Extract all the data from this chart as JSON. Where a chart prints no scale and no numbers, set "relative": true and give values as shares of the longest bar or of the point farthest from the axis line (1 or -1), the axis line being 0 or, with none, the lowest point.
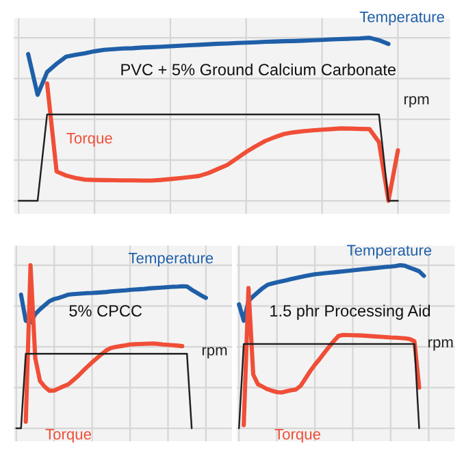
{
  "chart_data": [
    {
      "type": "line",
      "title": "PVC + 5% Ground Calcium Carbonate",
      "relative": true,
      "grid": true,
      "tick_labels": false,
      "categories": [
        null,
        null,
        null,
        null,
        null,
        null,
        null,
        null,
        null,
        null,
        null,
        null,
        null,
        null,
        null,
        null,
        null,
        null,
        null,
        null,
        null,
        null,
        null,
        null,
        null,
        null,
        null,
        null,
        null,
        null,
        null,
        null,
        null,
        null,
        null,
        null,
        null,
        null,
        null,
        null,
        null
      ],
      "series": [
        {
          "name": "Temperature",
          "color": "#1f5fa8",
          "values": [
            null,
            0.9,
            0.65,
            0.79,
            0.84,
            0.884,
            0.895,
            0.905,
            0.917,
            0.926,
            0.93,
            0.934,
            0.936,
            0.94,
            0.942,
            0.945,
            0.948,
            0.951,
            0.954,
            0.957,
            0.96,
            0.963,
            0.965,
            0.968,
            0.97,
            0.972,
            0.975,
            0.977,
            0.979,
            0.98,
            0.982,
            0.985,
            0.987,
            0.99,
            0.992,
            0.994,
            0.996,
            1.0,
            0.985,
            0.962,
            null
          ]
        },
        {
          "name": "Torque",
          "color": "#f04e37",
          "values": [
            null,
            null,
            null,
            0.72,
            0.18,
            0.155,
            0.14,
            0.13,
            0.128,
            0.127,
            0.126,
            0.125,
            0.125,
            0.124,
            0.124,
            0.128,
            0.133,
            0.139,
            0.145,
            0.152,
            0.17,
            0.195,
            0.22,
            0.26,
            0.3,
            0.335,
            0.367,
            0.39,
            0.41,
            0.42,
            0.427,
            0.432,
            0.436,
            0.44,
            0.444,
            0.443,
            0.441,
            0.44,
            0.36,
            0.0,
            0.31
          ]
        },
        {
          "name": "rpm",
          "color": "#222222",
          "values": [
            0,
            0,
            0,
            0.53,
            0.53,
            0.53,
            0.53,
            0.53,
            0.53,
            0.53,
            0.53,
            0.53,
            0.53,
            0.53,
            0.53,
            0.53,
            0.53,
            0.53,
            0.53,
            0.53,
            0.53,
            0.53,
            0.53,
            0.53,
            0.53,
            0.53,
            0.53,
            0.53,
            0.53,
            0.53,
            0.53,
            0.53,
            0.53,
            0.53,
            0.53,
            0.53,
            0.53,
            0.53,
            0.53,
            0,
            0
          ]
        }
      ]
    },
    {
      "type": "line",
      "title": "5% CPCC",
      "relative": true,
      "grid": true,
      "tick_labels": false,
      "categories": [
        null,
        null,
        null,
        null,
        null,
        null,
        null,
        null,
        null,
        null,
        null,
        null,
        null,
        null,
        null,
        null,
        null,
        null,
        null,
        null,
        null,
        null,
        null,
        null,
        null,
        null,
        null,
        null,
        null,
        null,
        null,
        null,
        null,
        null,
        null,
        null,
        null,
        null,
        null,
        null,
        null
      ],
      "series": [
        {
          "name": "Temperature",
          "color": "#1f5fa8",
          "values": [
            null,
            0.82,
            0.66,
            0.65,
            0.7,
            0.73,
            0.755,
            0.78,
            0.793,
            0.8,
            0.81,
            0.82,
            0.823,
            0.825,
            0.827,
            0.829,
            0.83,
            0.832,
            0.834,
            0.836,
            0.84,
            0.842,
            0.844,
            0.846,
            0.849,
            0.851,
            0.853,
            0.855,
            0.858,
            0.86,
            0.862,
            0.864,
            0.866,
            0.868,
            0.869,
            0.871,
            0.87,
            0.85,
            0.833,
            0.815,
            0.8
          ]
        },
        {
          "name": "Torque",
          "color": "#f04e37",
          "values": [
            null,
            null,
            0.04,
            1.0,
            0.43,
            0.29,
            0.255,
            0.23,
            0.232,
            0.245,
            0.258,
            0.27,
            0.295,
            0.32,
            0.35,
            0.378,
            0.405,
            0.43,
            0.455,
            0.478,
            0.493,
            0.499,
            0.504,
            0.509,
            0.514,
            0.516,
            0.517,
            0.518,
            0.519,
            0.52,
            0.517,
            0.514,
            0.512,
            0.51,
            0.507,
            0.504,
            null,
            null,
            null,
            null,
            null
          ]
        },
        {
          "name": "rpm",
          "color": "#222222",
          "values": [
            0,
            0,
            0.457,
            0.457,
            0.457,
            0.457,
            0.457,
            0.457,
            0.457,
            0.457,
            0.457,
            0.457,
            0.457,
            0.457,
            0.457,
            0.457,
            0.457,
            0.457,
            0.457,
            0.457,
            0.457,
            0.457,
            0.457,
            0.457,
            0.457,
            0.457,
            0.457,
            0.457,
            0.457,
            0.457,
            0.457,
            0.457,
            0.457,
            0.457,
            0.457,
            0.457,
            0.457,
            0,
            null,
            null,
            null
          ]
        }
      ]
    },
    {
      "type": "line",
      "title": "1.5 phr Processing Aid",
      "relative": true,
      "grid": true,
      "tick_labels": false,
      "categories": [
        null,
        null,
        null,
        null,
        null,
        null,
        null,
        null,
        null,
        null,
        null,
        null,
        null,
        null,
        null,
        null,
        null,
        null,
        null,
        null,
        null,
        null,
        null,
        null,
        null,
        null,
        null,
        null,
        null,
        null,
        null,
        null,
        null,
        null,
        null,
        null,
        null,
        null,
        null,
        null,
        null
      ],
      "series": [
        {
          "name": "Temperature",
          "color": "#1f5fa8",
          "values": [
            0.76,
            0.66,
            0.78,
            0.81,
            0.835,
            0.86,
            0.88,
            0.888,
            0.895,
            0.902,
            0.908,
            0.915,
            0.922,
            0.928,
            0.934,
            0.94,
            0.945,
            0.948,
            0.951,
            0.954,
            0.957,
            0.96,
            0.963,
            0.966,
            0.969,
            0.972,
            0.975,
            0.978,
            0.981,
            0.984,
            0.987,
            0.99,
            0.992,
            0.995,
            1.0,
            0.997,
            0.985,
            0.975,
            0.963,
            0.935,
            null
          ]
        },
        {
          "name": "Torque",
          "color": "#f04e37",
          "values": [
            null,
            0.02,
            0.86,
            0.33,
            0.27,
            0.255,
            0.24,
            0.23,
            0.222,
            0.22,
            0.227,
            0.233,
            0.238,
            0.26,
            0.305,
            0.35,
            0.39,
            0.425,
            0.463,
            0.5,
            0.535,
            0.567,
            0.573,
            0.572,
            0.571,
            0.57,
            0.569,
            0.567,
            0.565,
            0.563,
            0.561,
            0.559,
            0.557,
            0.556,
            0.554,
            0.552,
            0.548,
            0.534,
            0.25,
            null,
            null
          ]
        },
        {
          "name": "rpm",
          "color": "#222222",
          "values": [
            0,
            0.517,
            0.517,
            0.517,
            0.517,
            0.517,
            0.517,
            0.517,
            0.517,
            0.517,
            0.517,
            0.517,
            0.517,
            0.517,
            0.517,
            0.517,
            0.517,
            0.517,
            0.517,
            0.517,
            0.517,
            0.517,
            0.517,
            0.517,
            0.517,
            0.517,
            0.517,
            0.517,
            0.517,
            0.517,
            0.517,
            0.517,
            0.517,
            0.517,
            0.517,
            0.517,
            0.517,
            0.517,
            0,
            null,
            null
          ]
        }
      ]
    }
  ]
}
